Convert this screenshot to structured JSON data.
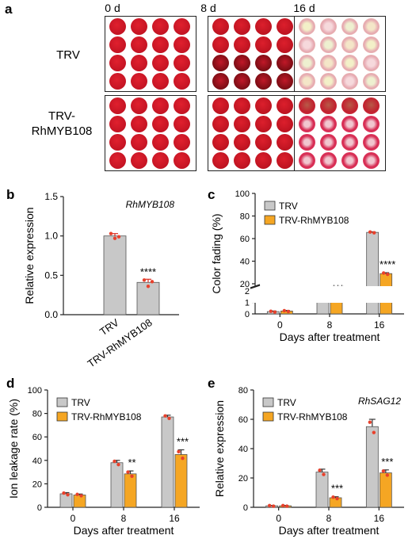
{
  "panel_a": {
    "letter": "a",
    "columns": [
      "0 d",
      "8 d",
      "16 d"
    ],
    "rows": [
      {
        "label_lines": [
          "TRV"
        ]
      },
      {
        "label_lines": [
          "TRV-",
          "RhMYB108"
        ]
      }
    ]
  },
  "chart_data": [
    {
      "panel": "b",
      "type": "bar",
      "title": "",
      "annotation": "RhMYB108",
      "ylabel": "Relative expression",
      "xlabel": "",
      "categories": [
        "TRV",
        "TRV-RhMYB108"
      ],
      "values": [
        1.0,
        0.41
      ],
      "errors": [
        0.03,
        0.04
      ],
      "points": [
        [
          1.03,
          0.97,
          0.99
        ],
        [
          0.44,
          0.36,
          0.42
        ]
      ],
      "significance": [
        "",
        "****"
      ],
      "ylim": [
        0.0,
        1.5
      ],
      "yticks": [
        "0.0",
        "0.5",
        "1.0",
        "1.5"
      ],
      "bar_color": "#c8c8c8",
      "point_color": "#e8412c"
    },
    {
      "panel": "c",
      "type": "bar",
      "title": "",
      "xlabel": "Days after treatment",
      "ylabel": "Color fading (%)",
      "categories": [
        "0",
        "8",
        "16"
      ],
      "series": [
        {
          "name": "TRV",
          "values": [
            0.2,
            6.5,
            65.5
          ],
          "errors": [
            0.05,
            0.3,
            0.5
          ],
          "color": "#c8c8c8"
        },
        {
          "name": "TRV-RhMYB108",
          "values": [
            0.25,
            1.4,
            29.0
          ],
          "errors": [
            0.05,
            0.1,
            0.8
          ],
          "color": "#f5a623"
        }
      ],
      "significance": [
        "",
        "***",
        "****"
      ],
      "axis_break": {
        "lower": [
          0,
          2
        ],
        "upper": [
          20,
          100
        ]
      },
      "yticks": [
        "0",
        "1",
        "2",
        "20",
        "40",
        "60",
        "80",
        "100"
      ],
      "legend": "top-left",
      "point_color": "#e8412c"
    },
    {
      "panel": "d",
      "type": "bar",
      "title": "",
      "xlabel": "Days after treatment",
      "ylabel": "Ion leakage rate (%)",
      "categories": [
        "0",
        "8",
        "16"
      ],
      "series": [
        {
          "name": "TRV",
          "values": [
            11.5,
            38,
            77
          ],
          "errors": [
            1.0,
            2.0,
            1.5
          ],
          "color": "#c8c8c8"
        },
        {
          "name": "TRV-RhMYB108",
          "values": [
            10.5,
            28.5,
            45
          ],
          "errors": [
            0.8,
            2.5,
            4.0
          ],
          "color": "#f5a623"
        }
      ],
      "significance": [
        "",
        "**",
        "***"
      ],
      "ylim": [
        0,
        100
      ],
      "yticks": [
        "0",
        "20",
        "40",
        "60",
        "80",
        "100"
      ],
      "legend": "top-left",
      "point_color": "#e8412c"
    },
    {
      "panel": "e",
      "type": "bar",
      "title": "",
      "annotation": "RhSAG12",
      "xlabel": "Days after treatment",
      "ylabel": "Relative expression",
      "categories": [
        "0",
        "8",
        "16"
      ],
      "series": [
        {
          "name": "TRV",
          "values": [
            1.0,
            24,
            55
          ],
          "errors": [
            0.3,
            2.0,
            5.0
          ],
          "color": "#c8c8c8"
        },
        {
          "name": "TRV-RhMYB108",
          "values": [
            1.0,
            6.5,
            23.5
          ],
          "errors": [
            0.3,
            0.7,
            2.0
          ],
          "color": "#f5a623"
        }
      ],
      "significance": [
        "",
        "***",
        "***"
      ],
      "ylim": [
        0,
        80
      ],
      "yticks": [
        "0",
        "20",
        "40",
        "60",
        "80"
      ],
      "legend": "top-left",
      "point_color": "#e8412c"
    }
  ]
}
